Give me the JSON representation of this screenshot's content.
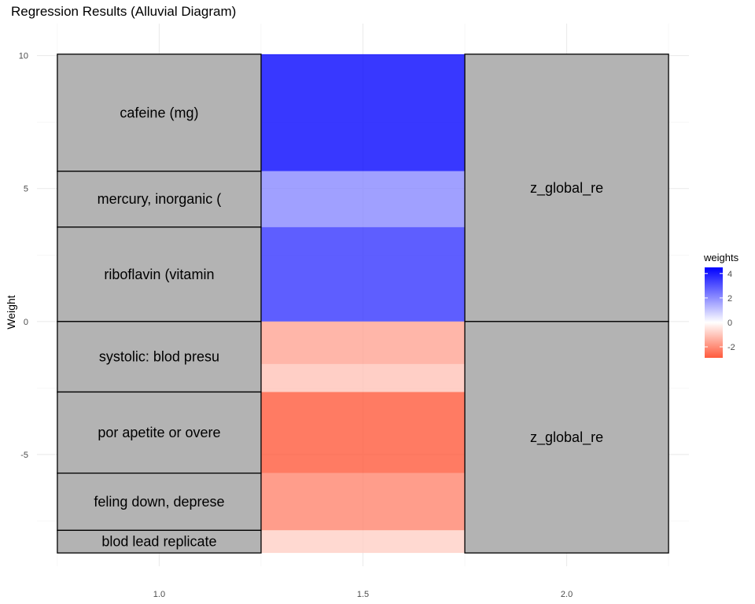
{
  "chart_data": {
    "type": "alluvial",
    "title": "Regression Results (Alluvial Diagram)",
    "xlabel": "",
    "ylabel": "Weight",
    "x_ticks": [
      "1.0",
      "1.5",
      "2.0"
    ],
    "xlim": [
      0.7,
      2.3
    ],
    "y_ticks": [
      -5,
      0,
      5,
      10
    ],
    "ylim": [
      -9.2,
      11.2
    ],
    "grid": true,
    "strata_axis1": [
      {
        "label": "cafeine (mg)",
        "weight": 4.4
      },
      {
        "label": "mercury, inorganic (",
        "weight": 2.1
      },
      {
        "label": "riboflavin (vitamin",
        "weight": 3.55
      },
      {
        "label": "systolic: blod presu",
        "weight": -2.65
      },
      {
        "label": "por apetite or overe",
        "weight": -3.05
      },
      {
        "label": "feling down, deprese",
        "weight": -2.15
      },
      {
        "label": "blod lead replicate",
        "weight": -0.85
      }
    ],
    "flows": [
      {
        "from": "cafeine (mg)",
        "weight": 4.4
      },
      {
        "from": "mercury, inorganic (",
        "weight": 2.1
      },
      {
        "from": "riboflavin (vitamin",
        "weight": 3.55
      },
      {
        "from": "systolic: blod presu",
        "weight": -1.6
      },
      {
        "from": "systolic: blod presu",
        "weight": -1.05
      },
      {
        "from": "por apetite or overe",
        "weight": -3.05
      },
      {
        "from": "feling down, deprese",
        "weight": -2.15
      },
      {
        "from": "blod lead replicate",
        "weight": -0.85
      }
    ],
    "strata_axis2": [
      {
        "label": "z_global_re",
        "weight": 10.05
      },
      {
        "label": "z_global_re",
        "weight": -8.7
      }
    ],
    "legend": {
      "title": "weights",
      "ticks": [
        4,
        2,
        0,
        -2
      ],
      "range": [
        -2.9,
        4.5
      ],
      "low_color": "#ff5a3c",
      "mid_color": "#ffffff",
      "high_color": "#0000ff",
      "position": "right"
    },
    "stratum_fill": "#b3b3b3"
  }
}
